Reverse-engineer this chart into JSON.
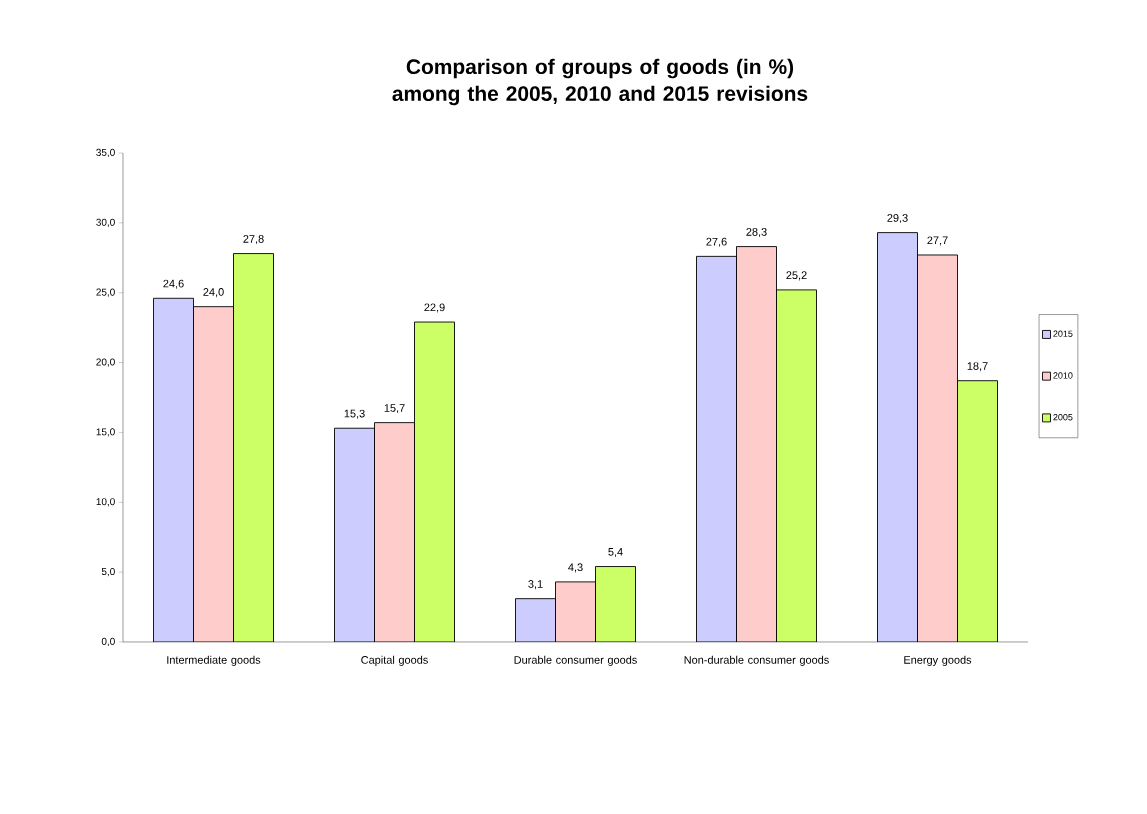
{
  "chart_data": {
    "type": "bar",
    "title": "Comparison of groups of goods (in %) among the 2005, 2010 and 2015 revisions",
    "categories": [
      "Intermediate goods",
      "Capital goods",
      "Durable consumer goods",
      "Non-durable consumer goods",
      "Energy goods"
    ],
    "series": [
      {
        "name": "2015",
        "color": "#ccccff",
        "values": [
          24.6,
          15.3,
          3.1,
          27.6,
          29.3
        ],
        "value_labels": [
          "24,6",
          "15,3",
          "3,1",
          "27,6",
          "29,3"
        ]
      },
      {
        "name": "2010",
        "color": "#ffcccc",
        "values": [
          24.0,
          15.7,
          4.3,
          28.3,
          27.7
        ],
        "value_labels": [
          "24,0",
          "15,7",
          "4,3",
          "28,3",
          "27,7"
        ]
      },
      {
        "name": "2005",
        "color": "#ccff66",
        "values": [
          27.8,
          22.9,
          5.4,
          25.2,
          18.7
        ],
        "value_labels": [
          "27,8",
          "22,9",
          "5,4",
          "25,2",
          "18,7"
        ]
      }
    ],
    "ylim": [
      0,
      35
    ],
    "yticks": [
      {
        "value": 0,
        "label": "0,0"
      },
      {
        "value": 5,
        "label": "5,0"
      },
      {
        "value": 10,
        "label": "10,0"
      },
      {
        "value": 15,
        "label": "15,0"
      },
      {
        "value": 20,
        "label": "20,0"
      },
      {
        "value": 25,
        "label": "25,0"
      },
      {
        "value": 30,
        "label": "30,0"
      },
      {
        "value": 35,
        "label": "35,0"
      }
    ],
    "legend": "right"
  }
}
